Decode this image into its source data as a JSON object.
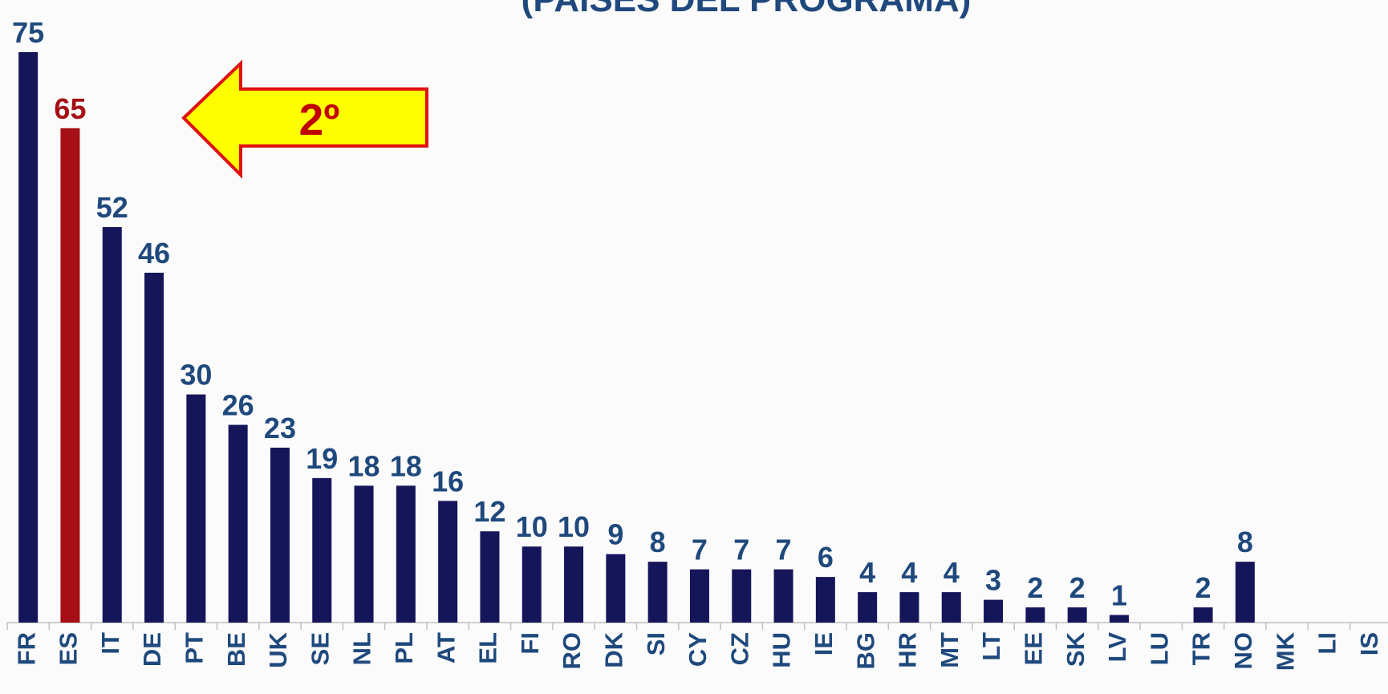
{
  "chart_data": {
    "type": "bar",
    "title": "(PAÍSES DEL PROGRAMA)",
    "annotation": "2º",
    "categories": [
      "FR",
      "ES",
      "IT",
      "DE",
      "PT",
      "BE",
      "UK",
      "SE",
      "NL",
      "PL",
      "AT",
      "EL",
      "FI",
      "RO",
      "DK",
      "SI",
      "CY",
      "CZ",
      "HU",
      "IE",
      "BG",
      "HR",
      "MT",
      "LT",
      "EE",
      "SK",
      "LV",
      "LU",
      "TR",
      "NO",
      "MK",
      "LI",
      "IS"
    ],
    "values": [
      75,
      65,
      52,
      46,
      30,
      26,
      23,
      19,
      18,
      18,
      16,
      12,
      10,
      10,
      9,
      8,
      7,
      7,
      7,
      6,
      4,
      4,
      4,
      3,
      2,
      2,
      1,
      null,
      2,
      8,
      null,
      null,
      null
    ],
    "color": "#15165a",
    "highlight_category": "ES",
    "highlight_color": "#a50f15",
    "ylim": [
      0,
      75
    ]
  }
}
